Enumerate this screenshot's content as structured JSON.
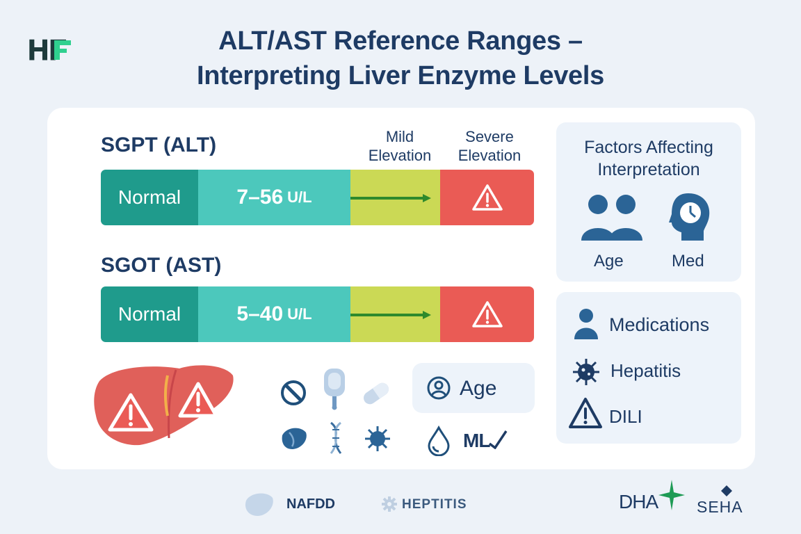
{
  "brand": {
    "logo_text": "HF"
  },
  "title": {
    "line1": "ALT/AST Reference Ranges –",
    "line2": "Interpreting Liver Enzyme Levels"
  },
  "zones": {
    "mild": {
      "line1": "Mild",
      "line2": "Elevation"
    },
    "severe": {
      "line1": "Severe",
      "line2": "Elevation"
    }
  },
  "enzymes": [
    {
      "label": "SGPT (ALT)",
      "normal_label": "Normal",
      "range": "7–56",
      "unit": "U/L"
    },
    {
      "label": "SGOT (AST)",
      "normal_label": "Normal",
      "range": "5–40",
      "unit": "U/L"
    }
  ],
  "colors": {
    "normal": "#1f9b8c",
    "range": "#4cc8bc",
    "mild": "#cbd955",
    "severe": "#ea5b55",
    "text": "#1e3b64",
    "arrow": "#2e8a2c"
  },
  "icons_row": {
    "top": [
      "no-entry-icon",
      "iv-bag-icon",
      "capsule-icon"
    ],
    "bottom": [
      "liver-lobe-icon",
      "dna-icon",
      "virus-icon"
    ],
    "age_label": "Age",
    "ml_label": "ML"
  },
  "factors": {
    "title_line1": "Factors Affecting",
    "title_line2": "Interpretation",
    "items": [
      {
        "label": "Age",
        "icon": "people-icon"
      },
      {
        "label": "Med",
        "icon": "head-clock-icon"
      }
    ]
  },
  "factor_list": [
    {
      "label": "Medications",
      "icon": "person-icon"
    },
    {
      "label": "Hepatitis",
      "icon": "virus-icon"
    },
    {
      "label": "DILI",
      "icon": "warning-icon"
    }
  ],
  "footer": {
    "nafdd": "NAFDD",
    "hepatitis": "HEPTITIS",
    "dha": "DHA",
    "seha": "SEHA"
  }
}
